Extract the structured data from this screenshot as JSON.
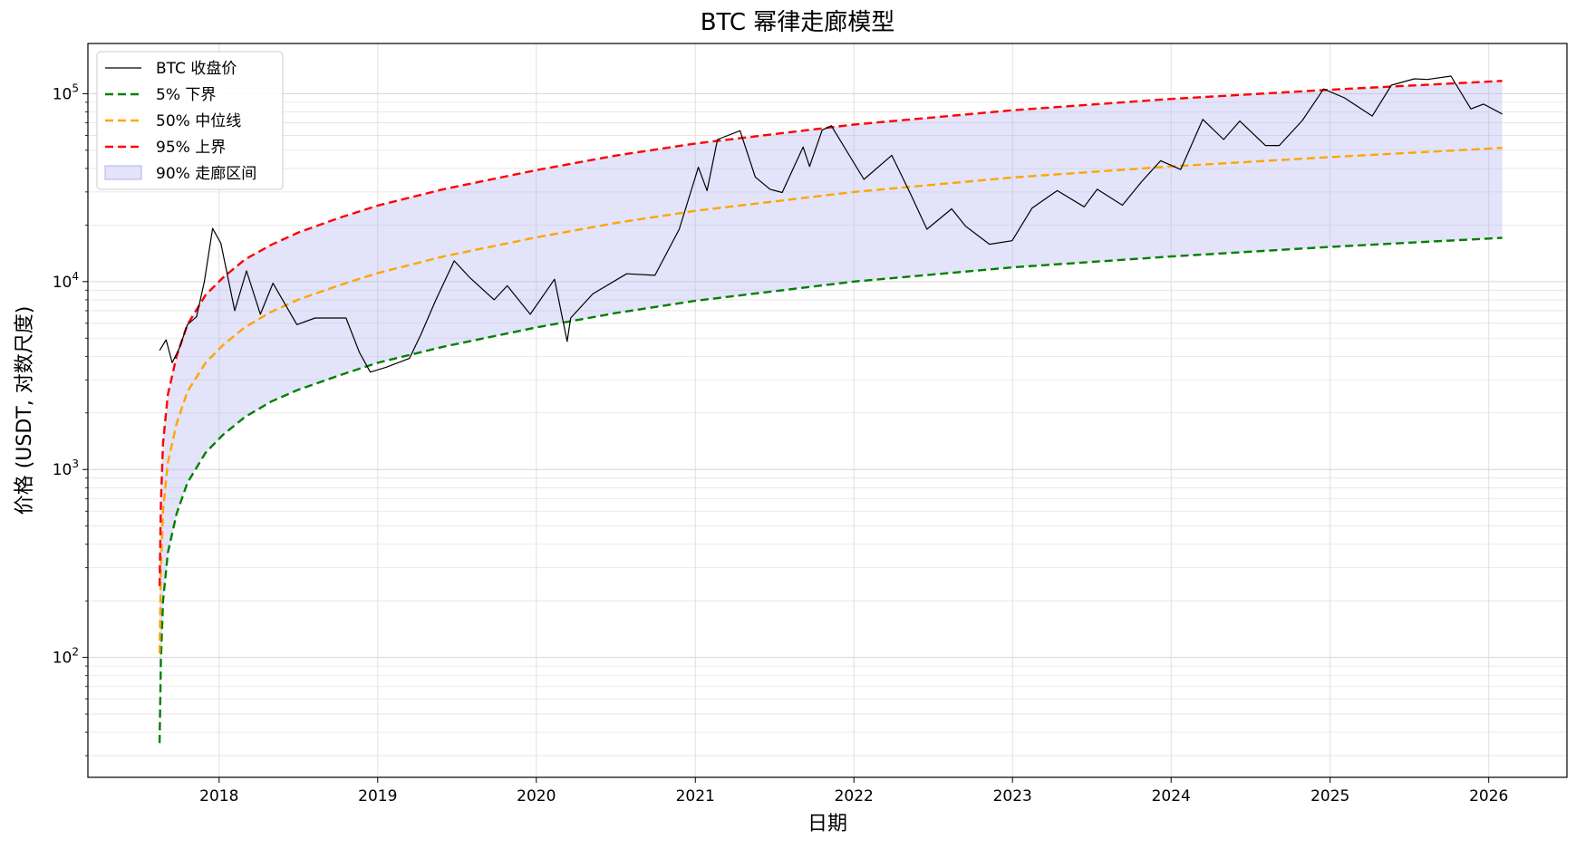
{
  "chart_data": {
    "type": "line",
    "title": "BTC 幂律走廊模型",
    "xlabel": "日期",
    "ylabel": "价格 (USDT, 对数尺度)",
    "y_scale": "log",
    "ylim": [
      23,
      185000
    ],
    "xlim": [
      "2017-03-05",
      "2026-06-30"
    ],
    "grid": true,
    "legend_position": "top-left",
    "x_ticks": [
      "2018",
      "2019",
      "2020",
      "2021",
      "2022",
      "2023",
      "2024",
      "2025",
      "2026"
    ],
    "y_ticks": [
      {
        "base": "10",
        "exp": "2",
        "value": 100
      },
      {
        "base": "10",
        "exp": "3",
        "value": 1000
      },
      {
        "base": "10",
        "exp": "4",
        "value": 10000
      },
      {
        "base": "10",
        "exp": "5",
        "value": 100000
      }
    ],
    "colors": {
      "price": "#000000",
      "lower": "#008000",
      "median": "#FFA500",
      "upper": "#FF0000",
      "band": "#b0b0ee"
    },
    "legend": [
      {
        "label": "BTC 收盘价",
        "style": "solid",
        "color": "#000000"
      },
      {
        "label": "5% 下界",
        "style": "dashed",
        "color": "#008000"
      },
      {
        "label": "50% 中位线",
        "style": "dashed",
        "color": "#FFA500"
      },
      {
        "label": "95% 上界",
        "style": "dashed",
        "color": "#FF0000"
      },
      {
        "label": "90% 走廊区间",
        "style": "patch",
        "color": "#b0b0ee"
      }
    ],
    "series": [
      {
        "name": "BTC 收盘价",
        "x": [
          "2017-08-17",
          "2017-09-01",
          "2017-09-15",
          "2017-10-01",
          "2017-10-20",
          "2017-11-10",
          "2017-11-28",
          "2017-12-17",
          "2018-01-05",
          "2018-02-06",
          "2018-03-05",
          "2018-04-06",
          "2018-05-05",
          "2018-06-29",
          "2018-08-10",
          "2018-10-20",
          "2018-11-20",
          "2018-12-15",
          "2019-01-20",
          "2019-03-15",
          "2019-04-10",
          "2019-05-15",
          "2019-06-26",
          "2019-08-01",
          "2019-09-26",
          "2019-10-26",
          "2019-12-18",
          "2020-02-12",
          "2020-03-12",
          "2020-03-20",
          "2020-05-10",
          "2020-07-27",
          "2020-09-30",
          "2020-11-25",
          "2021-01-08",
          "2021-01-28",
          "2021-02-21",
          "2021-04-14",
          "2021-05-19",
          "2021-06-22",
          "2021-07-20",
          "2021-09-06",
          "2021-09-21",
          "2021-10-20",
          "2021-11-10",
          "2022-01-24",
          "2022-03-29",
          "2022-05-12",
          "2022-06-18",
          "2022-08-14",
          "2022-09-15",
          "2022-11-09",
          "2022-12-31",
          "2023-02-15",
          "2023-04-14",
          "2023-06-15",
          "2023-07-15",
          "2023-09-11",
          "2023-10-25",
          "2023-12-08",
          "2024-01-23",
          "2024-03-14",
          "2024-05-01",
          "2024-06-07",
          "2024-08-05",
          "2024-09-06",
          "2024-10-29",
          "2024-12-17",
          "2025-02-03",
          "2025-04-08",
          "2025-05-22",
          "2025-07-14",
          "2025-08-13",
          "2025-10-06",
          "2025-11-21",
          "2025-12-20",
          "2026-02-01"
        ],
        "values": [
          4300,
          4900,
          3700,
          4400,
          5900,
          6500,
          10000,
          19200,
          16000,
          7000,
          11400,
          6700,
          9800,
          5900,
          6400,
          6400,
          4200,
          3300,
          3500,
          3900,
          5200,
          8000,
          12900,
          10500,
          8000,
          9500,
          6700,
          10300,
          4800,
          6400,
          8600,
          11000,
          10800,
          19000,
          40600,
          30500,
          57000,
          63500,
          36000,
          31000,
          29800,
          52000,
          41000,
          64000,
          67500,
          35000,
          47000,
          29000,
          19000,
          24400,
          19700,
          15800,
          16500,
          24600,
          30500,
          25000,
          31000,
          25500,
          34000,
          44000,
          39500,
          73000,
          57000,
          71500,
          53000,
          53000,
          72000,
          106000,
          95000,
          76000,
          111000,
          120000,
          119000,
          124000,
          83000,
          88000,
          78000
        ]
      },
      {
        "name": "5% 下界",
        "x": [
          "2017-08-17",
          "2017-08-20",
          "2017-08-25",
          "2017-09-05",
          "2017-09-25",
          "2017-10-20",
          "2017-12-01",
          "2018-01-10",
          "2018-03-01",
          "2018-05-01",
          "2018-07-01",
          "2018-10-01",
          "2019-01-01",
          "2019-06-01",
          "2020-01-01",
          "2020-07-01",
          "2021-01-01",
          "2022-01-01",
          "2023-01-01",
          "2024-01-01",
          "2025-01-01",
          "2026-02-01"
        ],
        "values": [
          35,
          95,
          200,
          360,
          580,
          850,
          1230,
          1530,
          1900,
          2300,
          2650,
          3150,
          3700,
          4500,
          5700,
          6800,
          7900,
          10000,
          11900,
          13600,
          15300,
          17100
        ]
      },
      {
        "name": "50% 中位线",
        "x": [
          "2017-08-17",
          "2017-08-20",
          "2017-08-25",
          "2017-09-05",
          "2017-09-25",
          "2017-10-20",
          "2017-12-01",
          "2018-01-10",
          "2018-03-01",
          "2018-05-01",
          "2018-07-01",
          "2018-10-01",
          "2019-01-01",
          "2019-06-01",
          "2020-01-01",
          "2020-07-01",
          "2021-01-01",
          "2022-01-01",
          "2023-01-01",
          "2024-01-01",
          "2025-01-01",
          "2026-02-01"
        ],
        "values": [
          105,
          290,
          600,
          1090,
          1750,
          2600,
          3700,
          4600,
          5700,
          6900,
          8000,
          9500,
          11100,
          13600,
          17200,
          20500,
          23800,
          30000,
          35800,
          41000,
          46000,
          51500
        ]
      },
      {
        "name": "95% 上界",
        "x": [
          "2017-08-17",
          "2017-08-20",
          "2017-08-25",
          "2017-09-05",
          "2017-09-25",
          "2017-10-20",
          "2017-12-01",
          "2018-01-10",
          "2018-03-01",
          "2018-05-01",
          "2018-07-01",
          "2018-10-01",
          "2019-01-01",
          "2019-06-01",
          "2020-01-01",
          "2020-07-01",
          "2021-01-01",
          "2022-01-01",
          "2023-01-01",
          "2024-01-01",
          "2025-01-01",
          "2026-02-01"
        ],
        "values": [
          240,
          660,
          1380,
          2500,
          4000,
          5900,
          8500,
          10500,
          13100,
          15700,
          18200,
          21700,
          25400,
          31000,
          39200,
          46800,
          54300,
          68500,
          81600,
          93800,
          105000,
          117000
        ]
      }
    ]
  }
}
